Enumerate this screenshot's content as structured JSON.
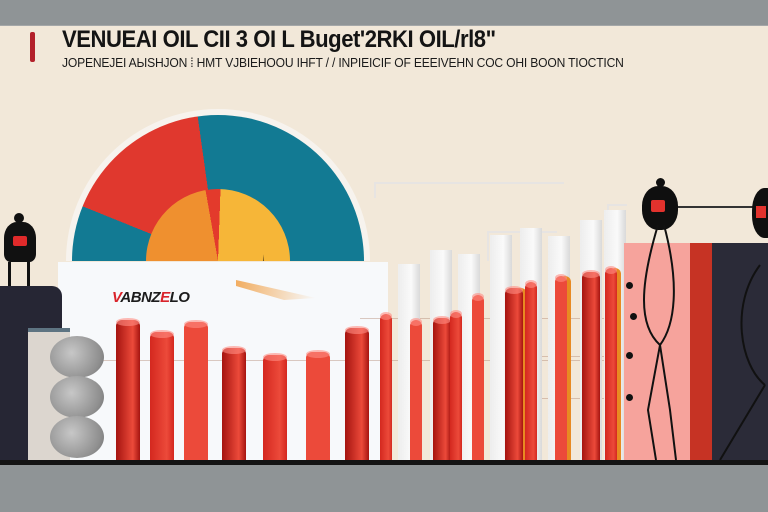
{
  "header": {
    "title": "VENUEAI OIL  CII 3 OI L Buget'2RKI OIL/rl8\"",
    "subtitle": "JOPENEJEI AЫSHJON ⁞ HMT VJBIEHOOU IHFT / / INPIEICIF OF EEEIVEHN COC OHI BOON TIOCTICN"
  },
  "gauge": {
    "label_prefix": "V",
    "label_mid": "ABNZ",
    "label_hl": "E",
    "label_suffix": "LO",
    "outer_segments": [
      {
        "name": "teal-left",
        "color": "#127a93",
        "degrees": 22
      },
      {
        "name": "red",
        "color": "#e0382e",
        "degrees": 60
      },
      {
        "name": "teal-right",
        "color": "#127a93",
        "degrees": 98
      }
    ],
    "inner_segments": [
      {
        "name": "orange",
        "color": "#ef902f",
        "degrees": 80
      },
      {
        "name": "red",
        "color": "#e33a2c",
        "degrees": 12
      },
      {
        "name": "yellow",
        "color": "#f6b638",
        "degrees": 88
      }
    ],
    "needle_angle_deg": -4
  },
  "colors": {
    "background": "#f2e8d9",
    "frame": "#8f9496",
    "accent_red": "#b3202a",
    "bar_dark_red": "#a51410",
    "bar_red": "#d4281f",
    "bar_light_red": "#ec4a3a",
    "bar_orange": "#e88a22",
    "teal": "#127a93"
  },
  "chart_data": {
    "type": "bar",
    "title": "VENUEAI OIL  CII 3 OI L Buget'2RKI OIL/rl8\"",
    "subtitle": "JOPENEJEI AЫSHJON ⁞ HMT VJBIEHOOU IHFT / / INPIEICIF OF EEEIVEHN COC OHI BOON TIOCTICN",
    "xlabel": "",
    "ylabel": "",
    "grid": true,
    "legend": null,
    "note": "Illustrative infographic; no axis ticks or numeric labels are shown. Values are relative bar heights in pixels above the baseline (baseline y=460).",
    "series": [
      {
        "name": "foreground-red-bars",
        "x": [
          116,
          150,
          184,
          222,
          263,
          306,
          345,
          380,
          410,
          433,
          450,
          472,
          505,
          525,
          555,
          582,
          605
        ],
        "values": [
          140,
          128,
          138,
          112,
          105,
          108,
          132,
          146,
          140,
          142,
          148,
          165,
          172,
          178,
          184,
          188,
          192
        ]
      },
      {
        "name": "background-white-bars",
        "x": [
          398,
          430,
          458,
          490,
          520,
          548,
          580,
          604
        ],
        "values": [
          196,
          210,
          206,
          225,
          232,
          224,
          240,
          250
        ]
      }
    ],
    "gauge": {
      "type": "pie",
      "label": "VABNZELO",
      "outer_ring_deg": [
        22,
        60,
        98
      ],
      "inner_ring_deg": [
        80,
        12,
        88
      ]
    }
  }
}
